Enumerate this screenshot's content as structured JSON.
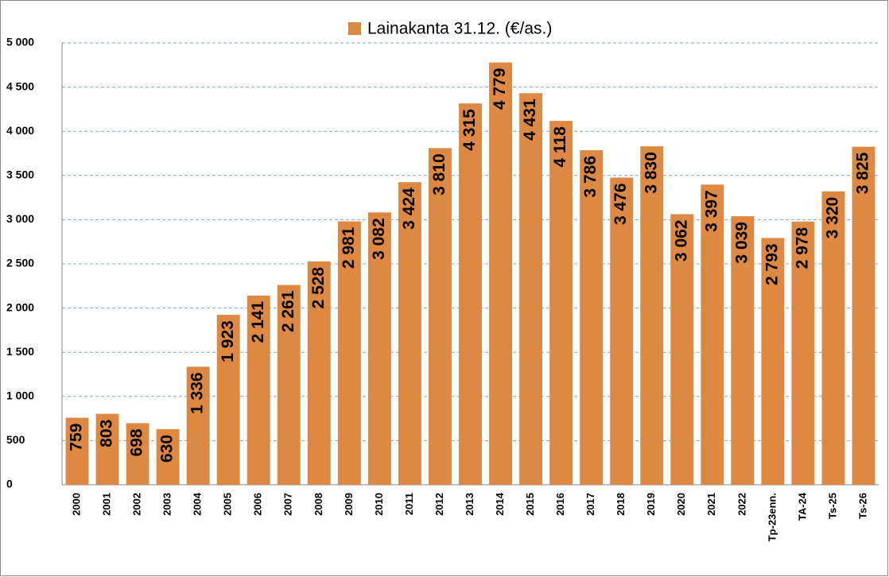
{
  "chart_data": {
    "type": "bar",
    "categories": [
      "2000",
      "2001",
      "2002",
      "2003",
      "2004",
      "2005",
      "2006",
      "2007",
      "2008",
      "2009",
      "2010",
      "2011",
      "2012",
      "2013",
      "2014",
      "2015",
      "2016",
      "2017",
      "2018",
      "2019",
      "2020",
      "2021",
      "2022",
      "Tp-23enn.",
      "TA-24",
      "Ts-25",
      "Ts-26"
    ],
    "series": [
      {
        "name": "Lainakanta 31.12. (€/as.)",
        "color": "#dd8843",
        "values": [
          759,
          803,
          698,
          630,
          1336,
          1923,
          2141,
          2261,
          2528,
          2981,
          3082,
          3424,
          3810,
          4315,
          4779,
          4431,
          4118,
          3786,
          3476,
          3830,
          3062,
          3397,
          3039,
          2793,
          2978,
          3320,
          3825
        ],
        "value_labels": [
          "759",
          "803",
          "698",
          "630",
          "1 336",
          "1 923",
          "2 141",
          "2 261",
          "2 528",
          "2 981",
          "3 082",
          "3 424",
          "3 810",
          "4 315",
          "4 779",
          "4 431",
          "4 118",
          "3 786",
          "3 476",
          "3 830",
          "3 062",
          "3 397",
          "3 039",
          "2 793",
          "2 978",
          "3 320",
          "3 825"
        ]
      }
    ],
    "ylim": [
      0,
      5000
    ],
    "yticks": [
      0,
      500,
      {
        "value": 1000,
        "label": "1 000"
      },
      {
        "value": 1500,
        "label": "1 500"
      },
      {
        "value": 2000,
        "label": "2 000"
      },
      {
        "value": 2500,
        "label": "2 500"
      },
      {
        "value": 3000,
        "label": "3 000"
      },
      {
        "value": 3500,
        "label": "3 500"
      },
      {
        "value": 4000,
        "label": "4 000"
      },
      {
        "value": 4500,
        "label": "4 500"
      },
      {
        "value": 5000,
        "label": "5 000"
      }
    ],
    "grid": true,
    "legend": "top"
  }
}
